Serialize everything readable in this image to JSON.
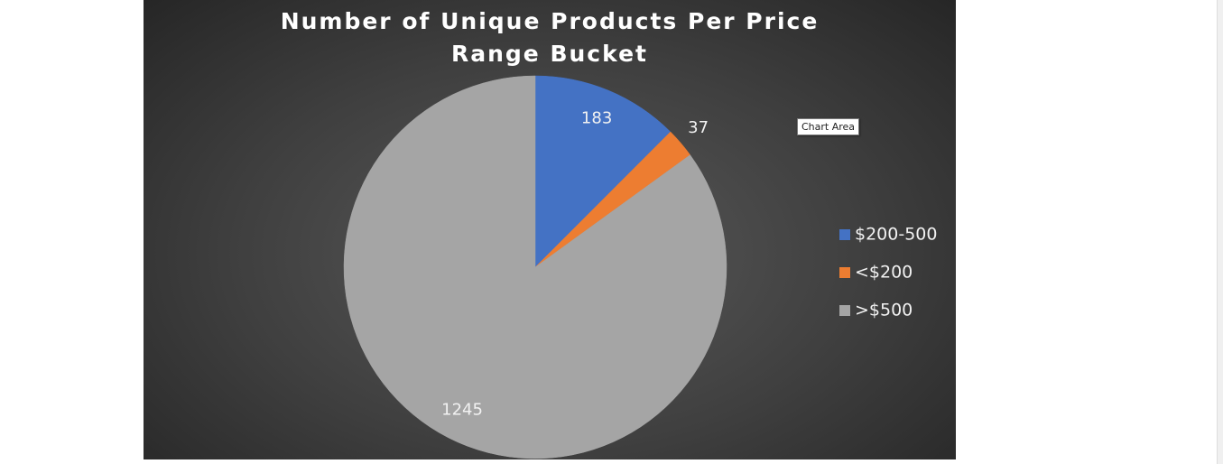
{
  "chart_data": {
    "type": "pie",
    "title": "Number of Unique Products Per Price Range Bucket",
    "categories": [
      "$200-500",
      "<$200",
      ">$500"
    ],
    "values": [
      183,
      37,
      1245
    ],
    "colors": [
      "#4472c4",
      "#ed7d31",
      "#a5a5a5"
    ],
    "legend": "right"
  },
  "tooltip": "Chart Area"
}
